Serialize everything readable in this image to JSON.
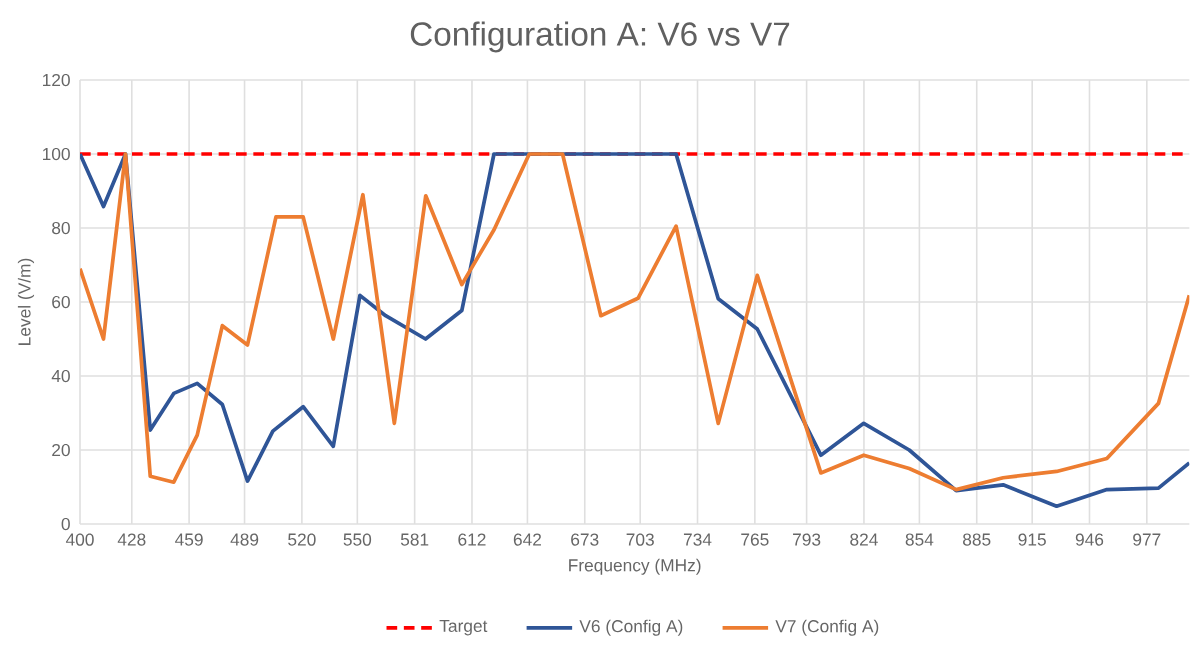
{
  "chart_data": {
    "type": "line",
    "title": "Configuration A: V6 vs V7",
    "xlabel": "Frequency (MHz)",
    "ylabel": "Level (V/m)",
    "xlim": [
      400,
      1000
    ],
    "xticks": [
      400,
      428,
      459,
      489,
      520,
      550,
      581,
      612,
      642,
      673,
      703,
      734,
      765,
      793,
      824,
      854,
      885,
      915,
      946,
      977
    ],
    "ylim": [
      0,
      120
    ],
    "yticks": [
      0,
      20,
      40,
      60,
      80,
      100,
      120
    ],
    "grid": true,
    "legend": "bottom",
    "marker": "none",
    "series": [
      {
        "name": "Target",
        "color": "#ff0000",
        "line_style": "dashed",
        "x": [
          400,
          1000
        ],
        "values": [
          100,
          100
        ]
      },
      {
        "name": "V6 (Config A)",
        "color": "#2f5597",
        "line_style": "solid",
        "x": [
          400,
          412.7,
          424.6,
          438,
          450.7,
          463.4,
          477,
          490.6,
          504.3,
          520.7,
          537,
          551.4,
          565.3,
          586.9,
          606.5,
          623.9,
          722.4,
          745.2,
          766.3,
          800.7,
          823.9,
          848.5,
          873.9,
          899.3,
          928.2,
          955.4,
          983.3,
          1000
        ],
        "values": [
          100,
          85.8,
          100,
          25.4,
          35.3,
          38,
          32.3,
          11.6,
          25.1,
          31.7,
          21,
          61.8,
          56.3,
          50,
          57.7,
          100,
          100,
          60.9,
          52.7,
          18.6,
          27.2,
          20,
          9,
          10.6,
          4.8,
          9.3,
          9.7,
          16.5
        ]
      },
      {
        "name": "V7 (Config A)",
        "color": "#ed7d31",
        "line_style": "solid",
        "x": [
          400,
          412.7,
          424.6,
          438,
          450.7,
          463.4,
          477,
          490.6,
          506,
          520.7,
          537,
          553,
          570,
          587,
          606.5,
          624,
          643,
          661,
          681.7,
          701.8,
          722.4,
          745.2,
          766.3,
          800.7,
          823.9,
          848.5,
          873.9,
          899.3,
          928.2,
          955.4,
          983.3,
          1000
        ],
        "values": [
          69,
          50,
          100,
          12.9,
          11.3,
          24,
          53.6,
          48.4,
          83,
          83,
          50,
          89,
          27.2,
          88.7,
          64.7,
          79.6,
          100,
          100,
          56.3,
          61,
          80.5,
          27.2,
          67.2,
          13.8,
          18.6,
          15,
          9.3,
          12.5,
          14.2,
          17.7,
          32.6,
          61.8
        ]
      }
    ]
  }
}
